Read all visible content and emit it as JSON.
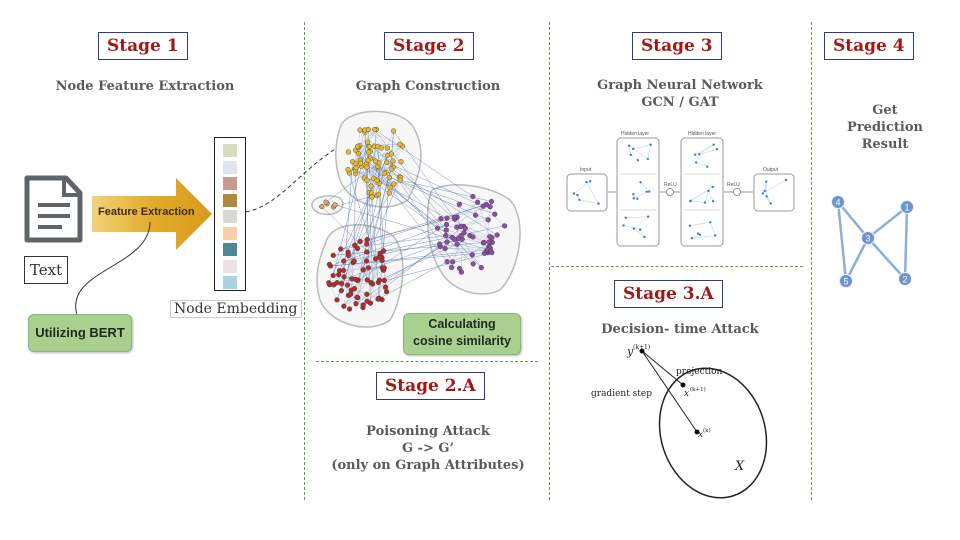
{
  "stages": {
    "s1": {
      "label": "Stage 1",
      "title": "Node Feature Extraction"
    },
    "s2": {
      "label": "Stage 2",
      "title": "Graph Construction"
    },
    "s2a": {
      "label": "Stage 2.A",
      "title": "Poisoning Attack\nG -> G’\n(only on Graph Attributes)"
    },
    "s3": {
      "label": "Stage 3",
      "title": "Graph Neural Network\nGCN / GAT"
    },
    "s3a": {
      "label": "Stage 3.A",
      "title": "Decision- time Attack"
    },
    "s4": {
      "label": "Stage 4",
      "title": "Get\nPrediction\nResult"
    }
  },
  "stage1": {
    "text_label": "Text",
    "arrow_label": "Feature Extraction",
    "bert_label": "Utilizing BERT",
    "embedding_label": "Node Embedding",
    "embedding_colors": [
      "#d4dfc1",
      "#dfe6f0",
      "#c99a8e",
      "#b08a3a",
      "#dad8d4",
      "#f4cfa8",
      "#4f8796",
      "#efe2e2",
      "#a9d3e0"
    ]
  },
  "stage2": {
    "cosine_label": "Calculating\ncosine similarity",
    "cluster_colors": {
      "yellow": "#e6b92e",
      "red": "#b22e2e",
      "purple": "#8e4ea8",
      "orange": "#d9a070"
    }
  },
  "stage3": {
    "layer_labels": [
      "Input",
      "Hidden layer",
      "ReLU",
      "Hidden layer",
      "ReLU",
      "Output"
    ]
  },
  "stage3a": {
    "y_label": "y",
    "y_sup": "(k+1)",
    "projection_label": "projection",
    "gradient_label": "gradient step",
    "x1_label": "x",
    "x1_sup": "(k+1)",
    "x_label": "x",
    "x_sup": "(k)",
    "set_label": "X"
  },
  "stage4": {
    "nodes": [
      "1",
      "2",
      "3",
      "4",
      "5"
    ],
    "node_color": "#6d93d4"
  }
}
